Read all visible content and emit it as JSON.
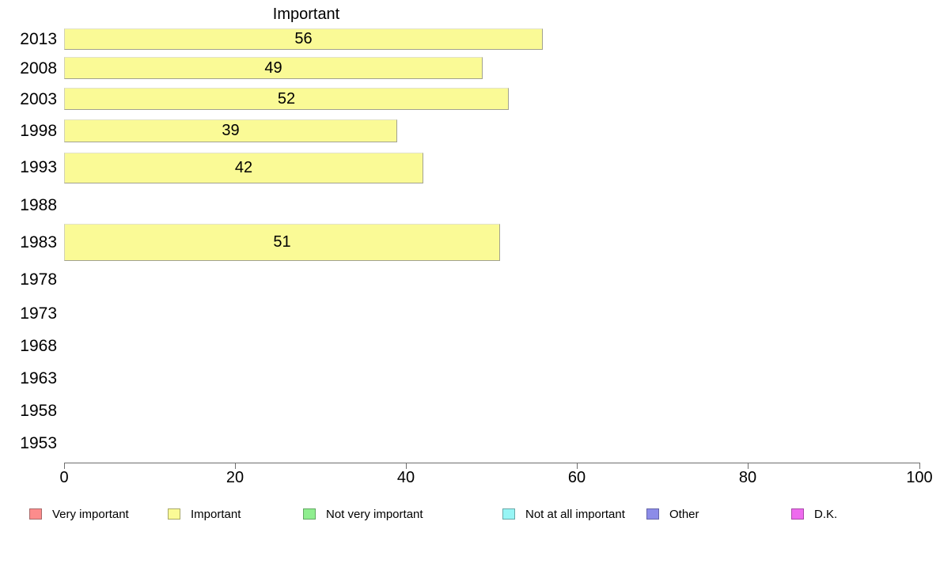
{
  "chart_data": {
    "type": "bar",
    "orientation": "horizontal",
    "title": "Important",
    "categories": [
      "2013",
      "2008",
      "2003",
      "1998",
      "1993",
      "1988",
      "1983",
      "1978",
      "1973",
      "1968",
      "1963",
      "1958",
      "1953"
    ],
    "series": [
      {
        "name": "Important",
        "values": [
          56,
          49,
          52,
          39,
          42,
          null,
          51,
          null,
          null,
          null,
          null,
          null,
          null
        ]
      }
    ],
    "bar_color": "#FAFA96",
    "bar_border_color": "#A2A28F",
    "xlim": [
      0,
      100
    ],
    "x_ticks": [
      "0",
      "20",
      "40",
      "60",
      "80",
      "100"
    ],
    "x_tick_values": [
      0,
      20,
      40,
      60,
      80,
      100
    ],
    "grid": "off",
    "legend_position": "bottom",
    "legend": [
      {
        "label": "Very important",
        "color": "#FC8C8C",
        "border": "#A86A6A"
      },
      {
        "label": "Important",
        "color": "#FAFA96",
        "border": "#A8A868"
      },
      {
        "label": "Not very important",
        "color": "#8FEE8F",
        "border": "#63A863"
      },
      {
        "label": "Not at all important",
        "color": "#97F5F5",
        "border": "#68A8A8"
      },
      {
        "label": "Other",
        "color": "#8C8CE8",
        "border": "#6464A8"
      },
      {
        "label": "D.K.",
        "color": "#EE6AEE",
        "border": "#A84AA8"
      }
    ]
  }
}
